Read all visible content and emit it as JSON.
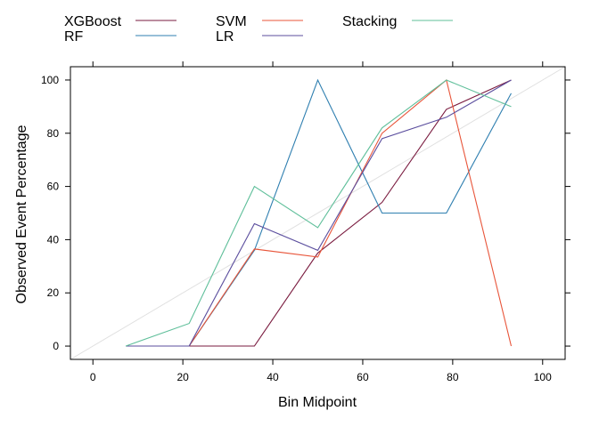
{
  "chart_data": {
    "type": "line",
    "title": "",
    "xlabel": "Bin Midpoint",
    "ylabel": "Observed Event Percentage",
    "xlim": [
      -5,
      105
    ],
    "ylim": [
      -5,
      105
    ],
    "x_ticks": [
      "0",
      "20",
      "40",
      "60",
      "80",
      "100"
    ],
    "y_ticks": [
      "0",
      "20",
      "40",
      "60",
      "80",
      "100"
    ],
    "grid": false,
    "legend_position": "top",
    "reference_line": {
      "from": [
        -5,
        -5
      ],
      "to": [
        105,
        105
      ],
      "color": "#e0e0e0"
    },
    "series": [
      {
        "name": "XGBoost",
        "color": "#7a1b3f",
        "x": [
          7.3,
          21.4,
          35.9,
          50.0,
          64.3,
          78.6,
          93.0
        ],
        "y": [
          0,
          0,
          0,
          35.0,
          54.0,
          89.0,
          100
        ]
      },
      {
        "name": "RF",
        "color": "#2f7fb0",
        "x": [
          7.3,
          21.4,
          35.9,
          50.0,
          64.3,
          78.6,
          93.0
        ],
        "y": [
          0,
          0,
          36.0,
          100,
          50.0,
          50.0,
          95.0
        ]
      },
      {
        "name": "SVM",
        "color": "#e8553a",
        "x": [
          7.3,
          21.4,
          35.9,
          50.0,
          64.3,
          78.6,
          93.0
        ],
        "y": [
          0,
          0,
          36.5,
          33.5,
          80.0,
          100,
          0
        ]
      },
      {
        "name": "LR",
        "color": "#5b4e9e",
        "x": [
          7.3,
          21.4,
          35.9,
          50.0,
          64.3,
          78.6,
          93.0
        ],
        "y": [
          0,
          0,
          46.0,
          36.0,
          78.0,
          86.0,
          100
        ]
      },
      {
        "name": "Stacking",
        "color": "#5fbf9a",
        "x": [
          7.3,
          21.4,
          35.9,
          50.0,
          64.3,
          78.6,
          93.0
        ],
        "y": [
          0,
          8.5,
          60.0,
          44.5,
          82.0,
          100,
          90.0
        ]
      }
    ]
  }
}
